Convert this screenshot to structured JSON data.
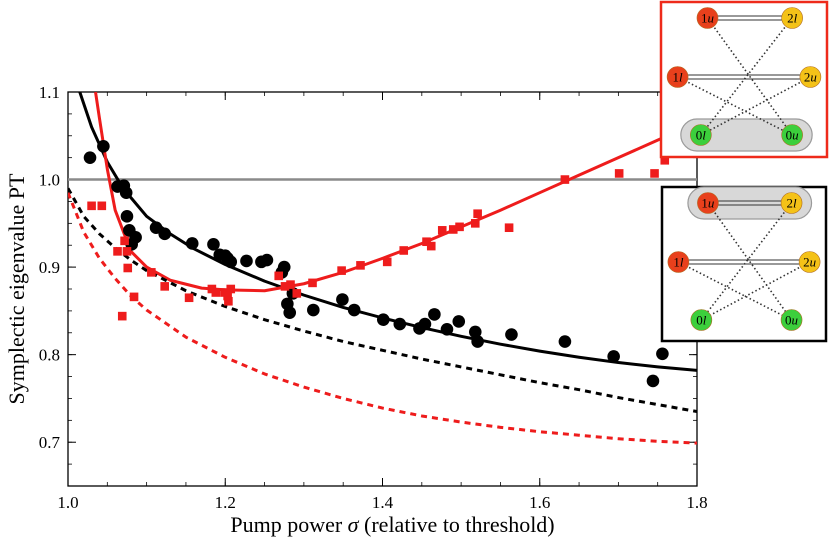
{
  "chart_data": {
    "type": "scatter",
    "xlabel": "Pump power",
    "xlabel_symbol": "σ",
    "xlabel_suffix": "(relative to threshold)",
    "ylabel": "Symplectic eigenvalue PT",
    "xlim": [
      1.0,
      1.8
    ],
    "ylim": [
      0.65,
      1.1
    ],
    "xticks": [
      "1.0",
      "1.2",
      "1.4",
      "1.6",
      "1.8"
    ],
    "yticks": [
      "0.7",
      "0.8",
      "0.9",
      "1.0",
      "1.1"
    ],
    "reference_line": {
      "y": 1.0,
      "color": "#8a8a8a"
    },
    "series": [
      {
        "name": "black points",
        "kind": "scatter",
        "marker": "circle",
        "color": "#000000",
        "points": [
          [
            1.028,
            1.025
          ],
          [
            1.045,
            1.038
          ],
          [
            1.063,
            0.992
          ],
          [
            1.071,
            0.993
          ],
          [
            1.074,
            0.985
          ],
          [
            1.075,
            0.958
          ],
          [
            1.078,
            0.942
          ],
          [
            1.081,
            0.926
          ],
          [
            1.086,
            0.934
          ],
          [
            1.112,
            0.945
          ],
          [
            1.123,
            0.938
          ],
          [
            1.158,
            0.927
          ],
          [
            1.185,
            0.926
          ],
          [
            1.193,
            0.914
          ],
          [
            1.2,
            0.913
          ],
          [
            1.203,
            0.91
          ],
          [
            1.207,
            0.906
          ],
          [
            1.227,
            0.907
          ],
          [
            1.246,
            0.906
          ],
          [
            1.253,
            0.908
          ],
          [
            1.272,
            0.894
          ],
          [
            1.275,
            0.9
          ],
          [
            1.279,
            0.858
          ],
          [
            1.282,
            0.848
          ],
          [
            1.286,
            0.87
          ],
          [
            1.312,
            0.851
          ],
          [
            1.349,
            0.863
          ],
          [
            1.364,
            0.851
          ],
          [
            1.401,
            0.84
          ],
          [
            1.422,
            0.835
          ],
          [
            1.447,
            0.83
          ],
          [
            1.454,
            0.835
          ],
          [
            1.466,
            0.846
          ],
          [
            1.482,
            0.829
          ],
          [
            1.497,
            0.838
          ],
          [
            1.518,
            0.826
          ],
          [
            1.521,
            0.815
          ],
          [
            1.564,
            0.823
          ],
          [
            1.632,
            0.815
          ],
          [
            1.694,
            0.798
          ],
          [
            1.744,
            0.77
          ],
          [
            1.756,
            0.801
          ]
        ]
      },
      {
        "name": "red points",
        "kind": "scatter",
        "marker": "square",
        "color": "#ee1c1c",
        "points": [
          [
            1.03,
            0.97
          ],
          [
            1.043,
            0.97
          ],
          [
            1.063,
            0.918
          ],
          [
            1.069,
            0.844
          ],
          [
            1.072,
            0.93
          ],
          [
            1.075,
            0.918
          ],
          [
            1.076,
            0.899
          ],
          [
            1.084,
            0.866
          ],
          [
            1.106,
            0.894
          ],
          [
            1.123,
            0.878
          ],
          [
            1.154,
            0.865
          ],
          [
            1.183,
            0.875
          ],
          [
            1.188,
            0.871
          ],
          [
            1.199,
            0.871
          ],
          [
            1.203,
            0.867
          ],
          [
            1.204,
            0.861
          ],
          [
            1.207,
            0.875
          ],
          [
            1.268,
            0.89
          ],
          [
            1.276,
            0.878
          ],
          [
            1.283,
            0.88
          ],
          [
            1.291,
            0.87
          ],
          [
            1.311,
            0.882
          ],
          [
            1.348,
            0.896
          ],
          [
            1.372,
            0.902
          ],
          [
            1.406,
            0.906
          ],
          [
            1.427,
            0.919
          ],
          [
            1.456,
            0.929
          ],
          [
            1.462,
            0.924
          ],
          [
            1.476,
            0.942
          ],
          [
            1.49,
            0.943
          ],
          [
            1.498,
            0.946
          ],
          [
            1.518,
            0.95
          ],
          [
            1.521,
            0.961
          ],
          [
            1.561,
            0.945
          ],
          [
            1.632,
            1.0
          ],
          [
            1.701,
            1.007
          ],
          [
            1.746,
            1.007
          ],
          [
            1.759,
            1.022
          ]
        ]
      },
      {
        "name": "black solid fit",
        "kind": "line",
        "style": "solid",
        "color": "#000000",
        "x": [
          1.015,
          1.03,
          1.05,
          1.07,
          1.1,
          1.13,
          1.16,
          1.2,
          1.25,
          1.3,
          1.35,
          1.4,
          1.45,
          1.5,
          1.55,
          1.6,
          1.65,
          1.7,
          1.75,
          1.8
        ],
        "y": [
          1.1,
          1.06,
          1.02,
          0.99,
          0.958,
          0.938,
          0.921,
          0.903,
          0.884,
          0.868,
          0.854,
          0.842,
          0.831,
          0.821,
          0.812,
          0.804,
          0.797,
          0.791,
          0.786,
          0.782
        ]
      },
      {
        "name": "red solid fit",
        "kind": "line",
        "style": "solid",
        "color": "#ee1c1c",
        "x": [
          1.035,
          1.04,
          1.05,
          1.06,
          1.08,
          1.1,
          1.13,
          1.17,
          1.2,
          1.25,
          1.3,
          1.35,
          1.4,
          1.45,
          1.5,
          1.55,
          1.6,
          1.65,
          1.7,
          1.75,
          1.8
        ],
        "y": [
          1.1,
          1.07,
          1.012,
          0.965,
          0.918,
          0.9,
          0.885,
          0.876,
          0.874,
          0.873,
          0.881,
          0.894,
          0.91,
          0.927,
          0.946,
          0.965,
          0.985,
          1.005,
          1.025,
          1.045,
          1.065
        ]
      },
      {
        "name": "black dashed theory",
        "kind": "line",
        "style": "dashed",
        "color": "#000000",
        "x": [
          1.0,
          1.02,
          1.04,
          1.06,
          1.08,
          1.1,
          1.15,
          1.2,
          1.25,
          1.3,
          1.35,
          1.4,
          1.45,
          1.5,
          1.55,
          1.6,
          1.65,
          1.7,
          1.75,
          1.8
        ],
        "y": [
          0.99,
          0.958,
          0.938,
          0.922,
          0.908,
          0.896,
          0.873,
          0.855,
          0.84,
          0.827,
          0.815,
          0.805,
          0.795,
          0.786,
          0.777,
          0.768,
          0.76,
          0.751,
          0.743,
          0.735
        ]
      },
      {
        "name": "red dashed theory",
        "kind": "line",
        "style": "dashed",
        "color": "#ee1c1c",
        "x": [
          1.0,
          1.02,
          1.04,
          1.06,
          1.08,
          1.1,
          1.15,
          1.2,
          1.25,
          1.3,
          1.35,
          1.4,
          1.45,
          1.5,
          1.55,
          1.6,
          1.65,
          1.7,
          1.75,
          1.8
        ],
        "y": [
          0.985,
          0.94,
          0.91,
          0.887,
          0.867,
          0.851,
          0.82,
          0.797,
          0.778,
          0.763,
          0.75,
          0.739,
          0.73,
          0.723,
          0.717,
          0.712,
          0.708,
          0.704,
          0.701,
          0.699
        ]
      }
    ],
    "insets": [
      {
        "name": "red-framed inset",
        "frame_color": "#ee2a1a",
        "highlighted_pair": [
          "0l",
          "0u"
        ],
        "nodes": [
          {
            "id": "1u",
            "label": "1u",
            "color": "#e8401c"
          },
          {
            "id": "2l",
            "label": "2l",
            "color": "#f4c218"
          },
          {
            "id": "1l",
            "label": "1l",
            "color": "#e8401c"
          },
          {
            "id": "2u",
            "label": "2u",
            "color": "#f4c218"
          },
          {
            "id": "0l",
            "label": "0l",
            "color": "#3ccf3c"
          },
          {
            "id": "0u",
            "label": "0u",
            "color": "#3ccf3c"
          }
        ]
      },
      {
        "name": "black-framed inset",
        "frame_color": "#000000",
        "highlighted_pair": [
          "1u",
          "2l"
        ],
        "nodes": [
          {
            "id": "1u",
            "label": "1u",
            "color": "#e8401c"
          },
          {
            "id": "2l",
            "label": "2l",
            "color": "#f4c218"
          },
          {
            "id": "1l",
            "label": "1l",
            "color": "#e8401c"
          },
          {
            "id": "2u",
            "label": "2u",
            "color": "#f4c218"
          },
          {
            "id": "0l",
            "label": "0l",
            "color": "#3ccf3c"
          },
          {
            "id": "0u",
            "label": "0u",
            "color": "#3ccf3c"
          }
        ]
      }
    ]
  }
}
